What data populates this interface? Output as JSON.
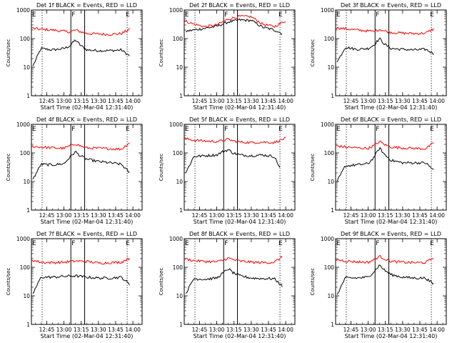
{
  "figure": {
    "xlabel": "Start Time (02-Mar-04 12:31:40)",
    "ylabel": "Counts/sec",
    "title_suffix": "BLACK = Events, RED = LLD",
    "x_tick_labels": [
      "12:45",
      "13:00",
      "13:15",
      "13:30",
      "13:45",
      "14:00"
    ],
    "y_tick_labels": [
      "1",
      "10",
      "100",
      "1000"
    ],
    "colors": {
      "events": "#000000",
      "lld": "#ff0000",
      "markers": "#000000"
    },
    "marker_labels": {
      "E": "E",
      "F": "F"
    }
  },
  "chart_data": [
    {
      "type": "line",
      "title": "Det 1f BLACK = Events, RED = LLD",
      "xlim": [
        "12:31:40",
        "14:08"
      ],
      "ylim": [
        1,
        1000
      ],
      "yscale": "log",
      "vlines_dotted": [
        "12:41",
        "13:55"
      ],
      "vlines_solid": [
        "13:06",
        "13:18"
      ],
      "series": [
        {
          "name": "Events",
          "x": [
            "12:33",
            "12:40",
            "12:50",
            "13:00",
            "13:05",
            "13:10",
            "13:14",
            "13:20",
            "13:30",
            "13:40",
            "13:50",
            "13:57"
          ],
          "values": [
            11,
            45,
            40,
            45,
            55,
            90,
            60,
            40,
            38,
            38,
            40,
            25
          ]
        },
        {
          "name": "LLD",
          "x": [
            "12:31:40",
            "12:40",
            "12:50",
            "13:00",
            "13:05",
            "13:10",
            "13:15",
            "13:20",
            "13:30",
            "13:40",
            "13:50",
            "13:57"
          ],
          "values": [
            230,
            210,
            200,
            180,
            170,
            200,
            170,
            150,
            145,
            140,
            150,
            210
          ]
        }
      ]
    },
    {
      "type": "line",
      "title": "Det 2f BLACK = Events, RED = LLD",
      "xlim": [
        "12:31:40",
        "14:08"
      ],
      "ylim": [
        1,
        1000
      ],
      "yscale": "log",
      "vlines_dotted": [
        "12:41",
        "13:55"
      ],
      "vlines_solid": [
        "13:06",
        "13:18"
      ],
      "series": [
        {
          "name": "Events",
          "x": [
            "12:33",
            "12:40",
            "12:50",
            "13:00",
            "13:10",
            "13:20",
            "13:30",
            "13:40",
            "13:50",
            "13:57"
          ],
          "values": [
            180,
            200,
            230,
            270,
            380,
            450,
            430,
            250,
            200,
            150
          ]
        },
        {
          "name": "LLD",
          "x": [
            "12:31:40",
            "12:40",
            "12:50",
            "13:00",
            "13:10",
            "13:20",
            "13:30",
            "13:40",
            "13:50",
            "14:00"
          ],
          "values": [
            420,
            320,
            260,
            300,
            480,
            600,
            580,
            320,
            260,
            420
          ]
        }
      ]
    },
    {
      "type": "line",
      "title": "Det 3f BLACK = Events, RED = LLD",
      "xlim": [
        "12:31:40",
        "14:08"
      ],
      "ylim": [
        1,
        1000
      ],
      "yscale": "log",
      "vlines_dotted": [
        "12:41",
        "13:55"
      ],
      "vlines_solid": [
        "13:06",
        "13:18"
      ],
      "series": [
        {
          "name": "Events",
          "x": [
            "12:33",
            "12:40",
            "12:50",
            "13:00",
            "13:05",
            "13:10",
            "13:14",
            "13:20",
            "13:30",
            "13:40",
            "13:50",
            "13:57"
          ],
          "values": [
            15,
            50,
            42,
            45,
            60,
            100,
            65,
            45,
            42,
            40,
            42,
            30
          ]
        },
        {
          "name": "LLD",
          "x": [
            "12:31:40",
            "12:40",
            "12:50",
            "13:00",
            "13:05",
            "13:10",
            "13:15",
            "13:20",
            "13:30",
            "13:40",
            "13:50",
            "13:57"
          ],
          "values": [
            240,
            220,
            200,
            185,
            180,
            210,
            180,
            165,
            155,
            150,
            155,
            220
          ]
        }
      ]
    },
    {
      "type": "line",
      "title": "Det 4f BLACK = Events, RED = LLD",
      "xlim": [
        "12:31:40",
        "14:08"
      ],
      "ylim": [
        1,
        1000
      ],
      "yscale": "log",
      "vlines_dotted": [
        "12:41",
        "13:55"
      ],
      "vlines_solid": [
        "13:06",
        "13:18"
      ],
      "series": [
        {
          "name": "Events",
          "x": [
            "12:33",
            "12:40",
            "12:50",
            "13:00",
            "13:05",
            "13:10",
            "13:14",
            "13:20",
            "13:30",
            "13:40",
            "13:50",
            "13:57"
          ],
          "values": [
            12,
            40,
            38,
            42,
            70,
            110,
            80,
            60,
            50,
            45,
            40,
            20
          ]
        },
        {
          "name": "LLD",
          "x": [
            "12:31:40",
            "12:40",
            "12:50",
            "13:00",
            "13:05",
            "13:10",
            "13:15",
            "13:20",
            "13:30",
            "13:40",
            "13:50",
            "13:57"
          ],
          "values": [
            170,
            160,
            150,
            145,
            175,
            210,
            170,
            150,
            145,
            140,
            135,
            230
          ]
        }
      ]
    },
    {
      "type": "line",
      "title": "Det 5f BLACK = Events, RED = LLD",
      "xlim": [
        "12:31:40",
        "14:08"
      ],
      "ylim": [
        1,
        1000
      ],
      "yscale": "log",
      "vlines_dotted": [
        "12:41",
        "13:55"
      ],
      "vlines_solid": [
        "13:06",
        "13:18"
      ],
      "series": [
        {
          "name": "Events",
          "x": [
            "12:33",
            "12:40",
            "12:50",
            "13:00",
            "13:05",
            "13:10",
            "13:14",
            "13:20",
            "13:30",
            "13:40",
            "13:50",
            "13:55"
          ],
          "values": [
            20,
            75,
            80,
            85,
            110,
            130,
            100,
            85,
            80,
            85,
            75,
            30
          ]
        },
        {
          "name": "LLD",
          "x": [
            "12:31:40",
            "12:40",
            "12:50",
            "13:00",
            "13:05",
            "13:10",
            "13:15",
            "13:20",
            "13:30",
            "13:40",
            "13:50",
            "14:00"
          ],
          "values": [
            320,
            280,
            260,
            250,
            270,
            300,
            260,
            240,
            230,
            240,
            230,
            330
          ]
        }
      ]
    },
    {
      "type": "line",
      "title": "Det 6f BLACK = Events, RED = LLD",
      "xlim": [
        "12:31:40",
        "14:08"
      ],
      "ylim": [
        1,
        1000
      ],
      "yscale": "log",
      "vlines_dotted": [
        "12:41",
        "13:55"
      ],
      "vlines_solid": [
        "13:06",
        "13:18"
      ],
      "series": [
        {
          "name": "Events",
          "x": [
            "12:33",
            "12:40",
            "12:50",
            "13:00",
            "13:05",
            "13:10",
            "13:14",
            "13:20",
            "13:30",
            "13:40",
            "13:50",
            "13:57"
          ],
          "values": [
            10,
            35,
            38,
            42,
            70,
            150,
            90,
            55,
            45,
            45,
            45,
            25
          ]
        },
        {
          "name": "LLD",
          "x": [
            "12:31:40",
            "12:40",
            "12:50",
            "13:00",
            "13:05",
            "13:10",
            "13:15",
            "13:20",
            "13:30",
            "13:40",
            "13:50",
            "13:57"
          ],
          "values": [
            180,
            160,
            150,
            145,
            180,
            250,
            190,
            160,
            150,
            145,
            140,
            220
          ]
        }
      ]
    },
    {
      "type": "line",
      "title": "Det 7f BLACK = Events, RED = LLD",
      "xlim": [
        "12:31:40",
        "14:08"
      ],
      "ylim": [
        1,
        1000
      ],
      "yscale": "log",
      "vlines_dotted": [
        "12:41",
        "13:55"
      ],
      "vlines_solid": [
        "13:06",
        "13:18"
      ],
      "series": [
        {
          "name": "Events",
          "x": [
            "12:33",
            "12:40",
            "12:50",
            "13:00",
            "13:10",
            "13:20",
            "13:30",
            "13:40",
            "13:50",
            "13:57"
          ],
          "values": [
            12,
            45,
            45,
            48,
            50,
            45,
            42,
            42,
            45,
            25
          ]
        },
        {
          "name": "LLD",
          "x": [
            "12:31:40",
            "12:40",
            "12:50",
            "13:00",
            "13:10",
            "13:20",
            "13:30",
            "13:40",
            "13:50",
            "13:57"
          ],
          "values": [
            180,
            150,
            145,
            150,
            165,
            160,
            140,
            145,
            150,
            210
          ]
        }
      ]
    },
    {
      "type": "line",
      "title": "Det 8f BLACK = Events, RED = LLD",
      "xlim": [
        "12:31:40",
        "14:08"
      ],
      "ylim": [
        1,
        1000
      ],
      "yscale": "log",
      "vlines_dotted": [
        "12:41",
        "13:55"
      ],
      "vlines_solid": [
        "13:06",
        "13:18"
      ],
      "series": [
        {
          "name": "Events",
          "x": [
            "12:33",
            "12:40",
            "12:50",
            "13:00",
            "13:05",
            "13:10",
            "13:14",
            "13:20",
            "13:30",
            "13:40",
            "13:50",
            "13:57"
          ],
          "values": [
            12,
            40,
            38,
            42,
            60,
            90,
            65,
            50,
            42,
            40,
            40,
            22
          ]
        },
        {
          "name": "LLD",
          "x": [
            "12:31:40",
            "12:40",
            "12:50",
            "13:00",
            "13:05",
            "13:10",
            "13:15",
            "13:20",
            "13:30",
            "13:40",
            "13:50",
            "13:57"
          ],
          "values": [
            200,
            170,
            160,
            155,
            175,
            210,
            180,
            165,
            150,
            145,
            150,
            230
          ]
        }
      ]
    },
    {
      "type": "line",
      "title": "Det 9f BLACK = Events, RED = LLD",
      "xlim": [
        "12:31:40",
        "14:08"
      ],
      "ylim": [
        1,
        1000
      ],
      "yscale": "log",
      "vlines_dotted": [
        "12:41",
        "13:55"
      ],
      "vlines_solid": [
        "13:06",
        "13:18"
      ],
      "series": [
        {
          "name": "Events",
          "x": [
            "12:33",
            "12:40",
            "12:50",
            "13:00",
            "13:05",
            "13:10",
            "13:14",
            "13:20",
            "13:30",
            "13:40",
            "13:50",
            "13:57"
          ],
          "values": [
            11,
            42,
            42,
            45,
            70,
            120,
            80,
            55,
            45,
            42,
            42,
            25
          ]
        },
        {
          "name": "LLD",
          "x": [
            "12:31:40",
            "12:40",
            "12:50",
            "13:00",
            "13:05",
            "13:10",
            "13:15",
            "13:20",
            "13:30",
            "13:40",
            "13:50",
            "13:57"
          ],
          "values": [
            190,
            165,
            155,
            150,
            180,
            240,
            190,
            160,
            150,
            145,
            145,
            220
          ]
        }
      ]
    }
  ]
}
